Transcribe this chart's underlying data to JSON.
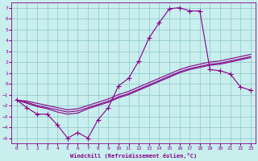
{
  "xlabel": "Windchill (Refroidissement éolien,°C)",
  "ylabel": "",
  "xlim": [
    -0.5,
    23.5
  ],
  "ylim": [
    -5.5,
    7.5
  ],
  "yticks": [
    -5,
    -4,
    -3,
    -2,
    -1,
    0,
    1,
    2,
    3,
    4,
    5,
    6,
    7
  ],
  "xticks": [
    0,
    1,
    2,
    3,
    4,
    5,
    6,
    7,
    8,
    9,
    10,
    11,
    12,
    13,
    14,
    15,
    16,
    17,
    18,
    19,
    20,
    21,
    22,
    23
  ],
  "bg_color": "#c8eeee",
  "line_color": "#880088",
  "grid_color": "#99cccc",
  "line1_x": [
    0,
    1,
    2,
    3,
    4,
    5,
    6,
    7,
    8,
    9,
    10,
    11,
    12,
    13,
    14,
    15,
    16,
    17,
    18,
    19,
    20,
    21,
    22,
    23
  ],
  "line1_y": [
    -1.5,
    -2.2,
    -2.8,
    -2.8,
    -3.8,
    -5.0,
    -4.5,
    -5.0,
    -3.3,
    -2.2,
    -0.2,
    0.5,
    2.1,
    4.2,
    5.6,
    6.9,
    7.0,
    6.7,
    6.7,
    1.3,
    1.2,
    0.9,
    -0.3,
    -0.6
  ],
  "line2_x": [
    0,
    1,
    2,
    3,
    4,
    5,
    6,
    7,
    8,
    9,
    10,
    11,
    12,
    13,
    14,
    15,
    16,
    17,
    18,
    19,
    20,
    21,
    22,
    23
  ],
  "line2_y": [
    -1.5,
    -1.8,
    -2.1,
    -2.3,
    -2.6,
    -2.8,
    -2.7,
    -2.3,
    -2.0,
    -1.7,
    -1.3,
    -1.0,
    -0.6,
    -0.2,
    0.2,
    0.6,
    1.0,
    1.3,
    1.5,
    1.7,
    1.8,
    2.0,
    2.2,
    2.4
  ],
  "line3_x": [
    0,
    1,
    2,
    3,
    4,
    5,
    6,
    7,
    8,
    9,
    10,
    11,
    12,
    13,
    14,
    15,
    16,
    17,
    18,
    19,
    20,
    21,
    22,
    23
  ],
  "line3_y": [
    -1.5,
    -1.7,
    -2.0,
    -2.2,
    -2.4,
    -2.6,
    -2.5,
    -2.2,
    -1.9,
    -1.6,
    -1.2,
    -0.9,
    -0.5,
    -0.1,
    0.3,
    0.7,
    1.1,
    1.4,
    1.6,
    1.8,
    1.9,
    2.1,
    2.3,
    2.5
  ],
  "line4_x": [
    0,
    1,
    2,
    3,
    4,
    5,
    6,
    7,
    8,
    9,
    10,
    11,
    12,
    13,
    14,
    15,
    16,
    17,
    18,
    19,
    20,
    21,
    22,
    23
  ],
  "line4_y": [
    -1.5,
    -1.6,
    -1.8,
    -2.0,
    -2.2,
    -2.4,
    -2.3,
    -2.0,
    -1.7,
    -1.4,
    -1.0,
    -0.7,
    -0.3,
    0.1,
    0.5,
    0.9,
    1.3,
    1.6,
    1.8,
    2.0,
    2.1,
    2.3,
    2.5,
    2.7
  ]
}
